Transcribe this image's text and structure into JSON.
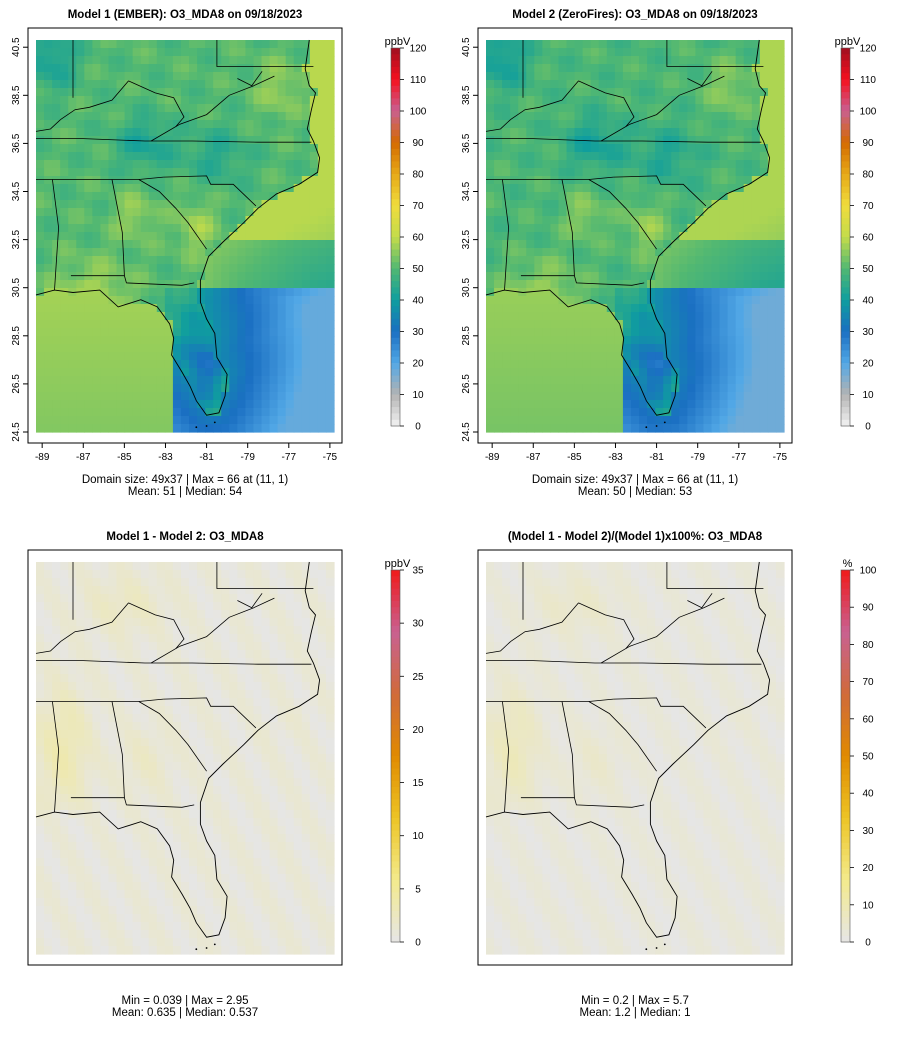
{
  "chart_data": [
    {
      "type": "heatmap",
      "title": "Model 1 (EMBER): O3_MDA8 on 09/18/2023",
      "legend_unit": "ppbV",
      "legend_ticks": [
        0,
        10,
        20,
        30,
        40,
        50,
        60,
        70,
        80,
        90,
        100,
        110,
        120
      ],
      "legend_range": [
        0,
        120
      ],
      "palette": "ozone",
      "x_ticks": [
        -89,
        -87,
        -85,
        -83,
        -81,
        -79,
        -77,
        -75
      ],
      "y_ticks": [
        24.5,
        26.5,
        28.5,
        30.5,
        32.5,
        34.5,
        36.5,
        38.5,
        40.5
      ],
      "xlim": [
        -89.3,
        -74.8
      ],
      "ylim": [
        24.5,
        40.8
      ],
      "grid_size": [
        49,
        37
      ],
      "show_axes": true,
      "stats_line1": "Domain size: 49x37 | Max = 66 at (11, 1)",
      "stats_line2": "Mean: 51 |  Median: 54",
      "stats": {
        "mean": 51,
        "median": 54,
        "max": 66,
        "max_at": [
          11,
          1
        ]
      },
      "field_offset": 0
    },
    {
      "type": "heatmap",
      "title": "Model 2 (ZeroFires): O3_MDA8 on 09/18/2023",
      "legend_unit": "ppbV",
      "legend_ticks": [
        0,
        10,
        20,
        30,
        40,
        50,
        60,
        70,
        80,
        90,
        100,
        110,
        120
      ],
      "legend_range": [
        0,
        120
      ],
      "palette": "ozone",
      "x_ticks": [
        -89,
        -87,
        -85,
        -83,
        -81,
        -79,
        -77,
        -75
      ],
      "y_ticks": [
        24.5,
        26.5,
        28.5,
        30.5,
        32.5,
        34.5,
        36.5,
        38.5,
        40.5
      ],
      "xlim": [
        -89.3,
        -74.8
      ],
      "ylim": [
        24.5,
        40.8
      ],
      "grid_size": [
        49,
        37
      ],
      "show_axes": true,
      "stats_line1": "Domain size: 49x37 | Max = 66 at (11, 1)",
      "stats_line2": "Mean: 50 |  Median: 53",
      "stats": {
        "mean": 50,
        "median": 53,
        "max": 66,
        "max_at": [
          11,
          1
        ]
      },
      "field_offset": -1
    },
    {
      "type": "heatmap",
      "title": "Model 1 - Model 2: O3_MDA8",
      "legend_unit": "ppbV",
      "legend_ticks": [
        0,
        5,
        10,
        15,
        20,
        25,
        30,
        35
      ],
      "legend_range": [
        0,
        35
      ],
      "palette": "diff",
      "xlim": [
        -89.3,
        -74.8
      ],
      "ylim": [
        24.5,
        40.8
      ],
      "show_axes": false,
      "stats_line1": "Min = 0.039 | Max = 2.95",
      "stats_line2": "Mean: 0.635 |  Median: 0.537",
      "stats": {
        "min": 0.039,
        "max": 2.95,
        "mean": 0.635,
        "median": 0.537
      }
    },
    {
      "type": "heatmap",
      "title": "(Model 1 - Model 2)/(Model 1)x100%: O3_MDA8",
      "legend_unit": "%",
      "legend_ticks": [
        0,
        10,
        20,
        30,
        40,
        50,
        60,
        70,
        80,
        90,
        100
      ],
      "legend_range": [
        0,
        100
      ],
      "palette": "diff",
      "xlim": [
        -89.3,
        -74.8
      ],
      "ylim": [
        24.5,
        40.8
      ],
      "show_axes": false,
      "stats_line1": "Min = 0.2 | Max = 5.7",
      "stats_line2": "Mean: 1.2 |  Median: 1",
      "stats": {
        "min": 0.2,
        "max": 5.7,
        "mean": 1.2,
        "median": 1
      }
    }
  ],
  "colors": {
    "ozone_scale": [
      "#f2f2f2",
      "#b3b3b3",
      "#52a8e6",
      "#1a6fc2",
      "#0f9e9e",
      "#52b872",
      "#c4dc4a",
      "#f0dc3c",
      "#e6a817",
      "#d46a00",
      "#c96091",
      "#f5101e",
      "#a01020"
    ],
    "diff_scale": [
      "#e6e6e6",
      "#f3ea8c",
      "#edc425",
      "#e08a00",
      "#d06a3a",
      "#c96091",
      "#f01a1a"
    ],
    "boundary": "#000000"
  }
}
